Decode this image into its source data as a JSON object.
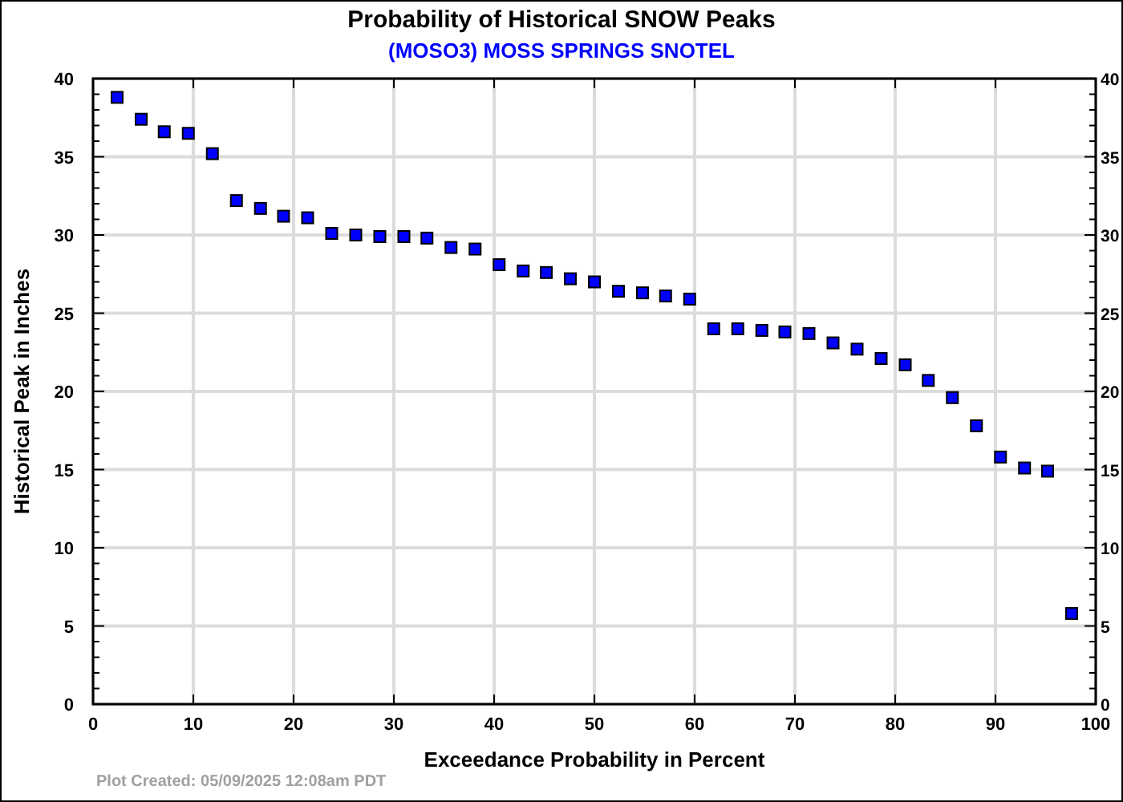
{
  "chart_data": {
    "type": "scatter",
    "title": "Probability of Historical SNOW Peaks",
    "subtitle": "(MOSO3) MOSS SPRINGS SNOTEL",
    "xlabel": "Exceedance Probability in Percent",
    "ylabel": "Historical Peak in Inches",
    "annotations": [
      "Plot Created: 05/09/2025 12:08am PDT"
    ],
    "x": [
      2.4,
      4.8,
      7.1,
      9.5,
      11.9,
      14.3,
      16.7,
      19.0,
      21.4,
      23.8,
      26.2,
      28.6,
      31.0,
      33.3,
      35.7,
      38.1,
      40.5,
      42.9,
      45.2,
      47.6,
      50.0,
      52.4,
      54.8,
      57.1,
      59.5,
      61.9,
      64.3,
      66.7,
      69.0,
      71.4,
      73.8,
      76.2,
      78.6,
      81.0,
      83.3,
      85.7,
      88.1,
      90.5,
      92.9,
      95.2,
      97.6
    ],
    "series": [
      {
        "color": "#0000ff",
        "values": [
          38.8,
          37.4,
          36.6,
          36.5,
          35.2,
          32.2,
          31.7,
          31.2,
          31.1,
          30.1,
          30.0,
          29.9,
          29.9,
          29.8,
          29.2,
          29.1,
          28.1,
          27.7,
          27.6,
          27.2,
          27.0,
          26.4,
          26.3,
          26.1,
          25.9,
          24.0,
          24.0,
          23.9,
          23.8,
          23.7,
          23.1,
          22.7,
          22.1,
          21.7,
          20.7,
          19.6,
          17.8,
          15.8,
          15.1,
          14.9,
          5.8
        ]
      }
    ],
    "xlim": [
      0,
      100
    ],
    "xticks": [
      0,
      10,
      20,
      30,
      40,
      50,
      60,
      70,
      80,
      90,
      100
    ],
    "ylim": [
      0,
      40
    ],
    "yticks": [
      0,
      5,
      10,
      15,
      20,
      25,
      30,
      35,
      40
    ],
    "y2lim": [
      0,
      40
    ],
    "y2ticks": [
      0,
      5,
      10,
      15,
      20,
      25,
      30,
      35,
      40
    ],
    "grid": true,
    "marker": "square"
  }
}
